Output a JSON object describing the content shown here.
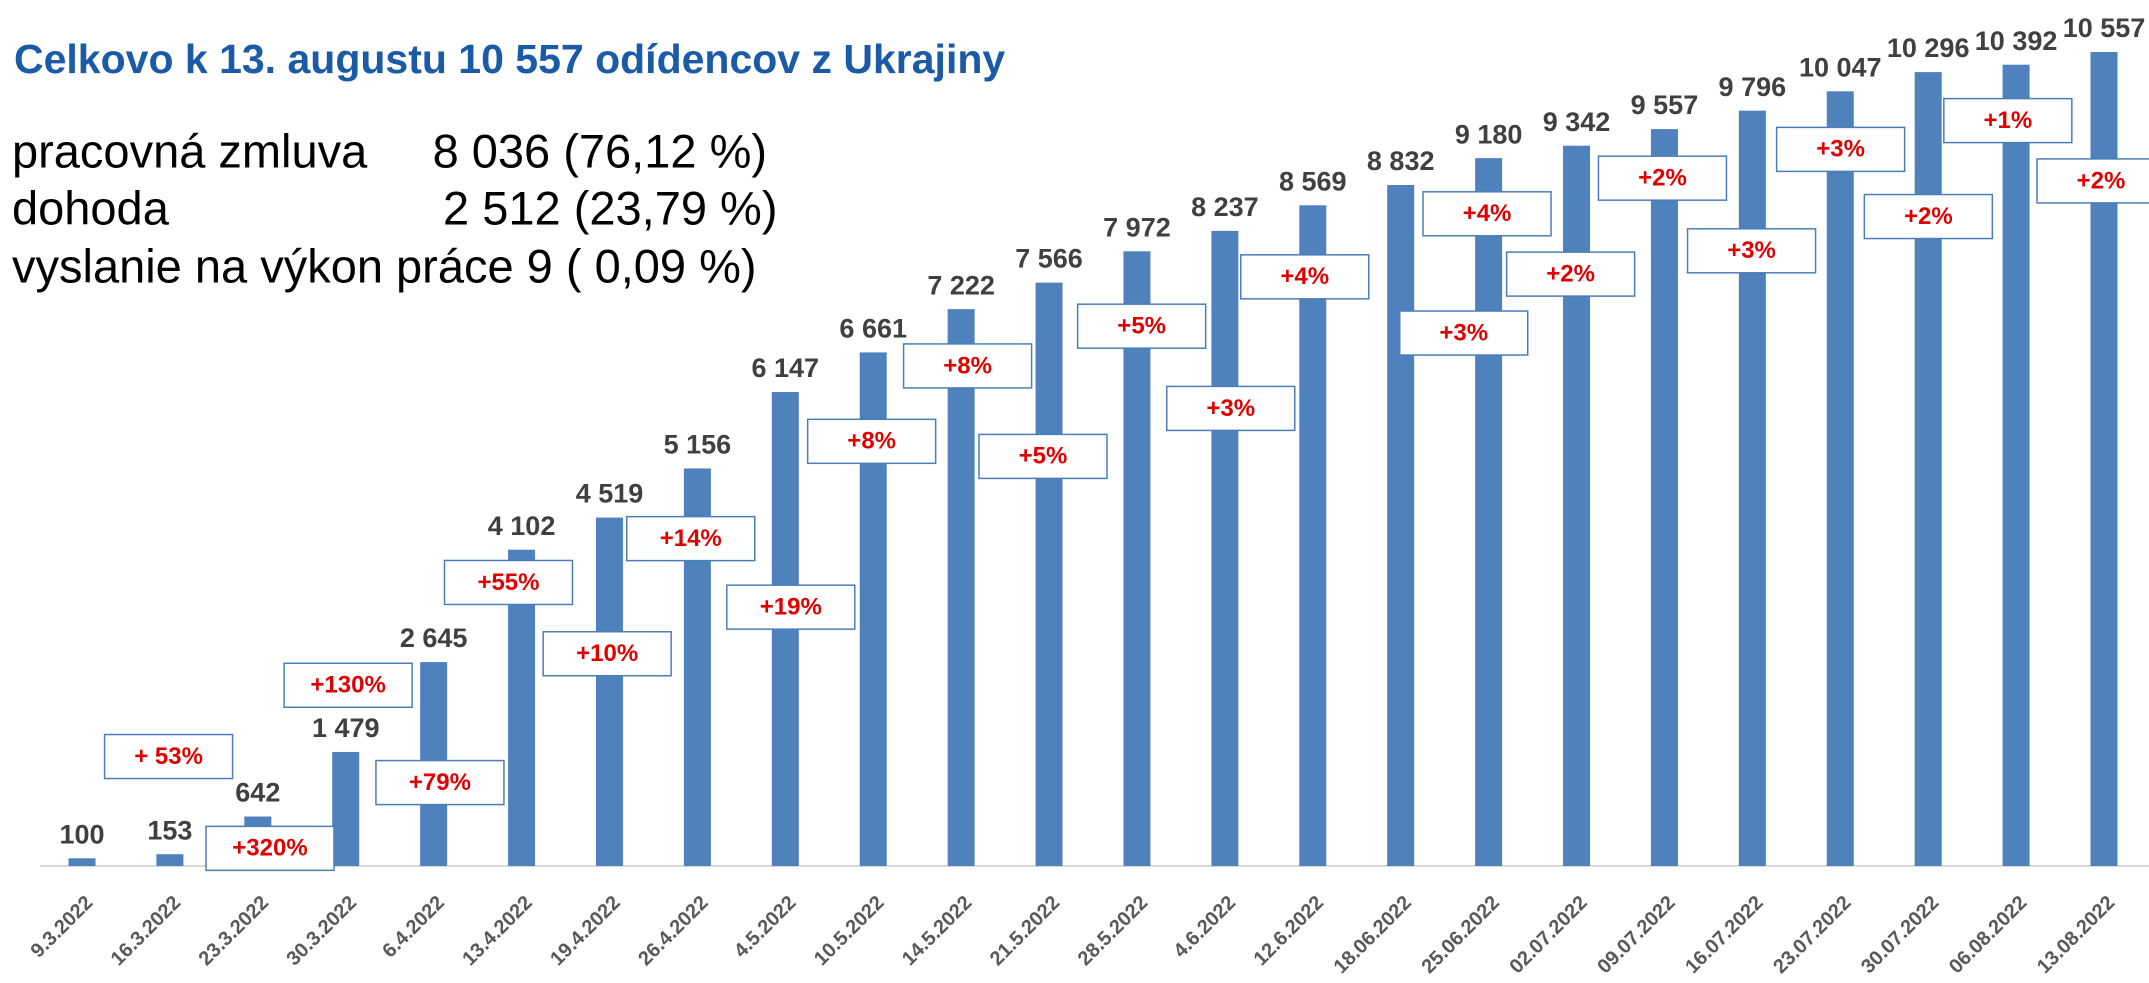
{
  "chart_data": {
    "type": "bar",
    "title": "Celkovo k 13. augustu 10 557 odídencov z Ukrajiny",
    "notes": [
      "pracovná zmluva     8 036 (76,12 %)",
      "dohoda                     2 512 (23,79 %)",
      "vyslanie na výkon práce 9 ( 0,09 %)"
    ],
    "categories": [
      "9.3.2022",
      "16.3.2022",
      "23.3.2022",
      "30.3.2022",
      "6.4.2022",
      "13.4.2022",
      "19.4.2022",
      "26.4.2022",
      "4.5.2022",
      "10.5.2022",
      "14.5.2022",
      "21.5.2022",
      "28.5.2022",
      "4.6.2022",
      "12.6.2022",
      "18.06.2022",
      "25.06.2022",
      "02.07.2022",
      "09.07.2022",
      "16.07.2022",
      "23.07.2022",
      "30.07.2022",
      "06.08.2022",
      "13.08.2022"
    ],
    "values": [
      100,
      153,
      642,
      1479,
      2645,
      4102,
      4519,
      5156,
      6147,
      6661,
      7222,
      7566,
      7972,
      8237,
      8569,
      8832,
      9180,
      9342,
      9557,
      9796,
      10047,
      10296,
      10392,
      10557
    ],
    "value_labels": [
      "100",
      "153",
      "642",
      "1 479",
      "2 645",
      "4 102",
      "4 519",
      "5 156",
      "6 147",
      "6 661",
      "7 222",
      "7 566",
      "7 972",
      "8 237",
      "8 569",
      "8 832",
      "9 180",
      "9 342",
      "9 557",
      "9 796",
      "10 047",
      "10 296",
      "10 392",
      "10 557"
    ],
    "annotations": [
      "+ 53%",
      "+320%",
      "+130%",
      "+79%",
      "+55%",
      "+10%",
      "+14%",
      "+19%",
      "+8%",
      "+8%",
      "+5%",
      "+5%",
      "+3%",
      "+4%",
      "+3%",
      "+4%",
      "+2%",
      "+2%",
      "+3%",
      "+3%",
      "+2%",
      "+1%",
      "+2%"
    ],
    "color": "#4f81bd"
  }
}
